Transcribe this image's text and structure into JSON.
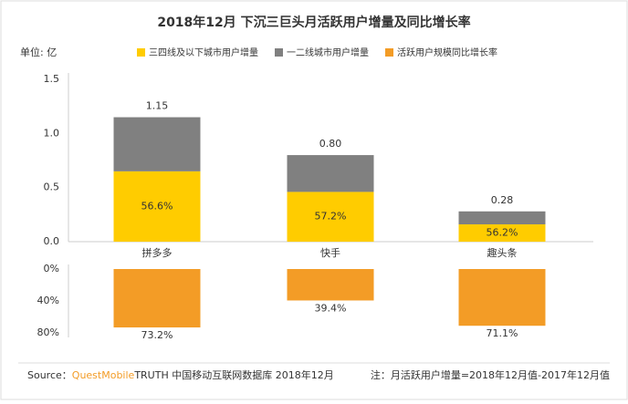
{
  "chart_data": [
    {
      "type": "stacked_bar",
      "title": "2018年12月 下沉三巨头月活跃用户增量及同比增长率",
      "unit_label": "单位: 亿",
      "categories": [
        "拼多多",
        "快手",
        "趣头条"
      ],
      "series": [
        {
          "name": "三四线及以下城市用户增量",
          "color": "#FFCC00",
          "values": [
            0.65,
            0.46,
            0.16
          ],
          "share_labels": [
            "56.6%",
            "57.2%",
            "56.2%"
          ]
        },
        {
          "name": "一二线城市用户增量",
          "color": "#808080",
          "values": [
            0.5,
            0.34,
            0.12
          ]
        }
      ],
      "totals": [
        1.15,
        0.8,
        0.28
      ],
      "total_labels": [
        "1.15",
        "0.80",
        "0.28"
      ],
      "ylim": [
        0,
        1.5
      ],
      "yticks": [
        {
          "value": 0,
          "label": "0.0"
        },
        0.5,
        {
          "value": 1,
          "label": "1.0"
        },
        1.5
      ]
    },
    {
      "type": "inverted_bar",
      "categories": [
        "拼多多",
        "快手",
        "趣头条"
      ],
      "series": [
        {
          "name": "活跃用户规模同比增长率",
          "color": "#F39C26",
          "values": [
            73.2,
            39.4,
            71.1
          ],
          "value_labels": [
            "73.2%",
            "39.4%",
            "71.1%"
          ]
        }
      ],
      "ylim": [
        0,
        80
      ],
      "yticks": [
        {
          "value": 0,
          "label": "0%"
        },
        {
          "value": 40,
          "label": "40%"
        },
        {
          "value": 80,
          "label": "80%"
        }
      ]
    }
  ],
  "footer": {
    "source_prefix": "Source：",
    "brand": "QuestMobile",
    "source_rest": "TRUTH 中国移动互联网数据库 2018年12月",
    "note": "注：月活跃用户增量=2018年12月值-2017年12月值"
  }
}
